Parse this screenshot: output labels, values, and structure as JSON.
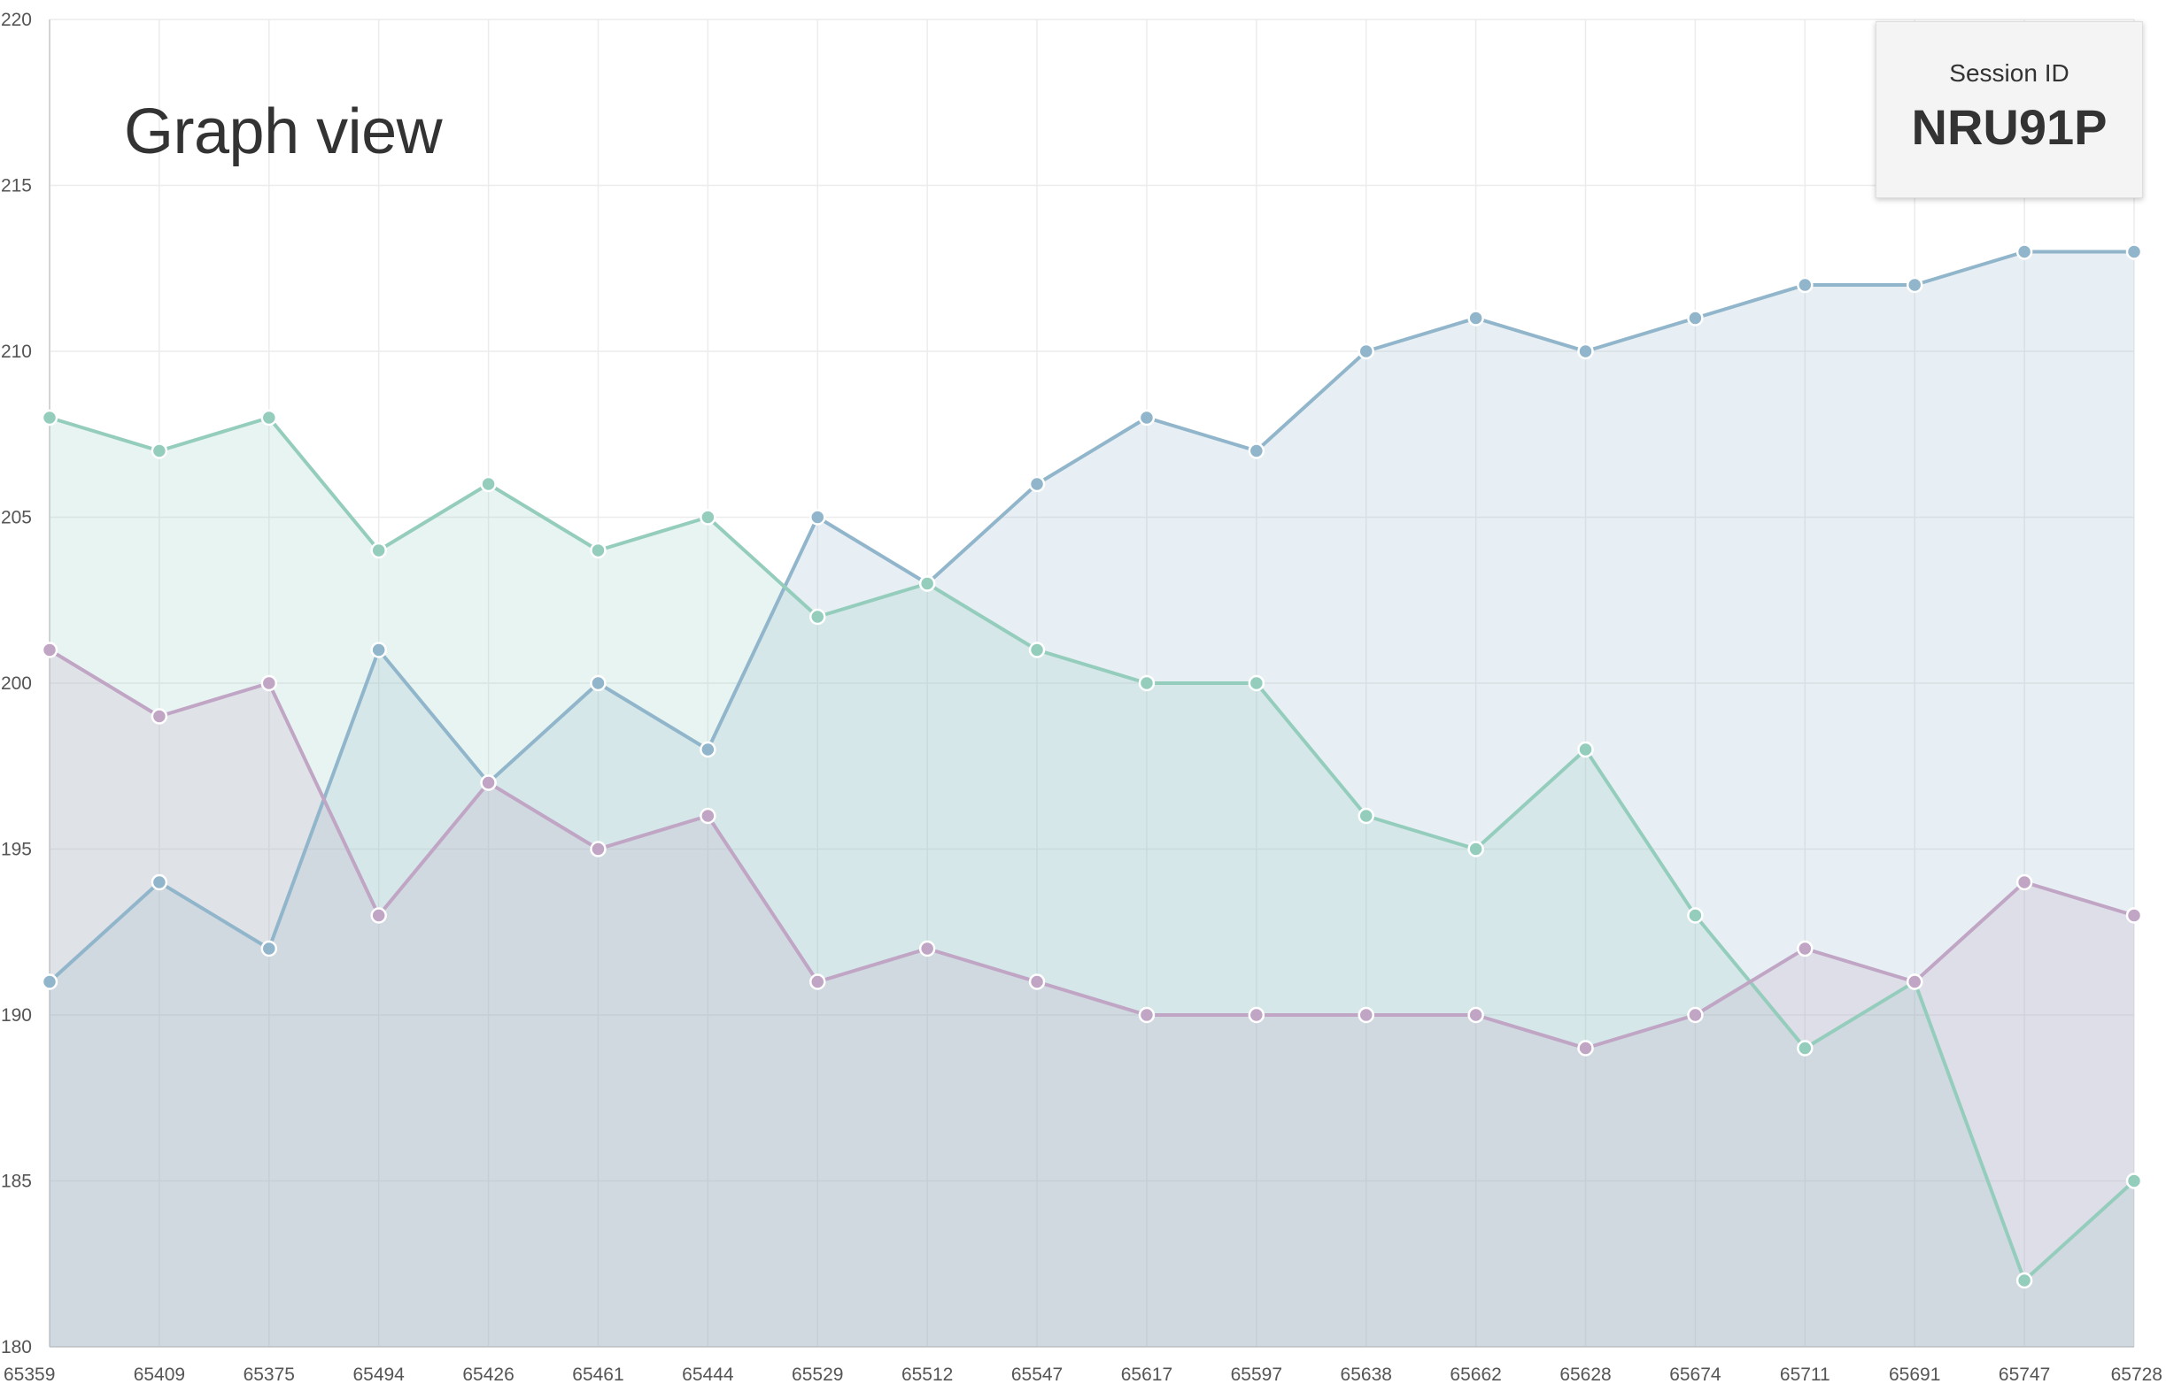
{
  "page": {
    "title": "Graph view"
  },
  "session": {
    "label": "Session ID",
    "value": "NRU91P"
  },
  "chart_data": {
    "type": "area",
    "title": "",
    "xlabel": "",
    "ylabel": "",
    "ylim": [
      180,
      220
    ],
    "yticks": [
      180,
      185,
      190,
      195,
      200,
      205,
      210,
      215,
      220
    ],
    "grid": true,
    "legend": "none",
    "x": [
      "65359",
      "65409",
      "65375",
      "65494",
      "65426",
      "65461",
      "65444",
      "65529",
      "65512",
      "65547",
      "65617",
      "65597",
      "65638",
      "65662",
      "65628",
      "65674",
      "65711",
      "65691",
      "65747",
      "65728"
    ],
    "series": [
      {
        "color": "#91b6cb",
        "fill": "rgba(145,182,203,0.22)",
        "values": [
          191,
          194,
          192,
          201,
          197,
          200,
          198,
          205,
          203,
          206,
          208,
          207,
          210,
          211,
          210,
          211,
          212,
          212,
          213,
          213
        ]
      },
      {
        "color": "#95cdbd",
        "fill": "rgba(149,205,189,0.22)",
        "values": [
          208,
          207,
          208,
          204,
          206,
          204,
          205,
          202,
          203,
          201,
          200,
          200,
          196,
          195,
          198,
          193,
          189,
          191,
          182,
          185
        ]
      },
      {
        "color": "#c0a5c5",
        "fill": "rgba(192,165,197,0.22)",
        "values": [
          201,
          199,
          200,
          193,
          197,
          195,
          196,
          191,
          192,
          191,
          190,
          190,
          190,
          190,
          189,
          190,
          192,
          191,
          194,
          193
        ]
      }
    ]
  }
}
